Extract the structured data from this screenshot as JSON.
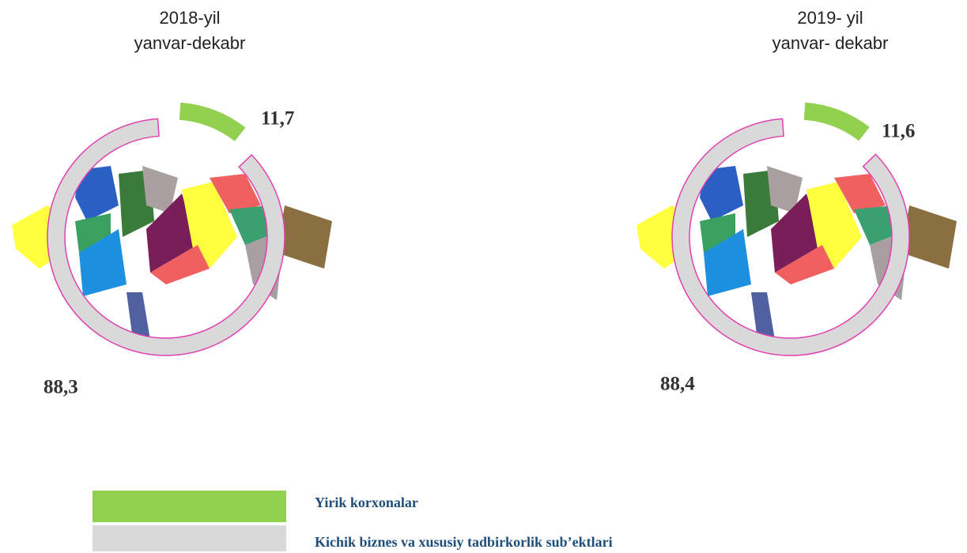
{
  "chart_data": [
    {
      "type": "donut",
      "title": [
        "2018-yil",
        "yanvar-dekabr"
      ],
      "values": [
        11.7,
        88.3
      ],
      "value_labels": [
        "11,7",
        "88,3"
      ],
      "colors": [
        "#92d050",
        "#d9d9d9"
      ]
    },
    {
      "type": "donut",
      "title": [
        "2019- yil",
        "yanvar- dekabr"
      ],
      "values": [
        11.6,
        88.4
      ],
      "value_labels": [
        "11,6",
        "88,4"
      ],
      "colors": [
        "#92d050",
        "#d9d9d9"
      ]
    }
  ],
  "legend": {
    "labels": [
      "Yirik korxonalar",
      "Kichik biznes va xususiy tadbirkorlik sub’ektlari"
    ]
  }
}
